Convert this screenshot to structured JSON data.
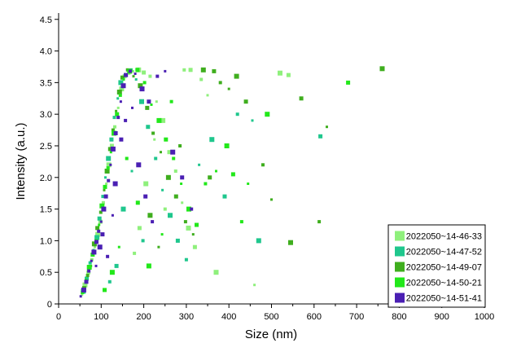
{
  "chart_data": {
    "type": "scatter",
    "title": "",
    "xlabel": "Size (nm)",
    "ylabel": "Intensity (a.u.)",
    "xlim": [
      0,
      1000
    ],
    "ylim": [
      0,
      4.6
    ],
    "x_ticks": [
      0,
      100,
      200,
      300,
      400,
      500,
      600,
      700,
      800,
      900,
      1000
    ],
    "x_tick_labels": [
      "0",
      "100",
      "200",
      "300",
      "400",
      "500",
      "600",
      "700",
      "800",
      "900",
      "1000"
    ],
    "y_ticks": [
      0,
      0.5,
      1.0,
      1.5,
      2.0,
      2.5,
      3.0,
      3.5,
      4.0,
      4.5
    ],
    "y_tick_labels": [
      "0",
      "0.5",
      "1.0",
      "1.5",
      "2.0",
      "2.5",
      "3.0",
      "3.5",
      "4.0",
      "4.5"
    ],
    "grid": false,
    "legend_position": "bottom-right",
    "series": [
      {
        "name": "2022050~14-46-33",
        "color": "#8ff07c",
        "points": [
          [
            55,
            0.15
          ],
          [
            62,
            0.3
          ],
          [
            70,
            0.5
          ],
          [
            78,
            0.7
          ],
          [
            85,
            0.9
          ],
          [
            92,
            1.1
          ],
          [
            98,
            1.3
          ],
          [
            105,
            1.6
          ],
          [
            112,
            1.9
          ],
          [
            118,
            2.2
          ],
          [
            125,
            2.5
          ],
          [
            132,
            2.8
          ],
          [
            140,
            3.1
          ],
          [
            148,
            3.4
          ],
          [
            155,
            3.6
          ],
          [
            165,
            3.65
          ],
          [
            175,
            3.68
          ],
          [
            188,
            3.7
          ],
          [
            200,
            3.66
          ],
          [
            215,
            3.6
          ],
          [
            230,
            3.2
          ],
          [
            245,
            2.9
          ],
          [
            260,
            2.4
          ],
          [
            275,
            2.1
          ],
          [
            290,
            1.6
          ],
          [
            305,
            1.2
          ],
          [
            320,
            0.9
          ],
          [
            335,
            3.55
          ],
          [
            350,
            3.3
          ],
          [
            370,
            0.5
          ],
          [
            310,
            3.7
          ],
          [
            295,
            3.7
          ],
          [
            460,
            0.3
          ],
          [
            520,
            3.65
          ],
          [
            540,
            3.62
          ],
          [
            250,
            1.5
          ],
          [
            225,
            2.6
          ],
          [
            205,
            1.9
          ],
          [
            190,
            1.2
          ],
          [
            178,
            0.8
          ]
        ]
      },
      {
        "name": "2022050~14-47-52",
        "color": "#1fc78d",
        "points": [
          [
            58,
            0.2
          ],
          [
            66,
            0.4
          ],
          [
            74,
            0.65
          ],
          [
            82,
            0.85
          ],
          [
            90,
            1.05
          ],
          [
            96,
            1.35
          ],
          [
            104,
            1.7
          ],
          [
            110,
            2.0
          ],
          [
            117,
            2.3
          ],
          [
            124,
            2.6
          ],
          [
            131,
            2.95
          ],
          [
            139,
            3.25
          ],
          [
            146,
            3.5
          ],
          [
            158,
            3.62
          ],
          [
            170,
            3.7
          ],
          [
            182,
            3.55
          ],
          [
            195,
            3.2
          ],
          [
            210,
            2.8
          ],
          [
            228,
            2.3
          ],
          [
            244,
            1.8
          ],
          [
            262,
            1.4
          ],
          [
            280,
            1.0
          ],
          [
            300,
            0.7
          ],
          [
            330,
            2.2
          ],
          [
            360,
            2.6
          ],
          [
            390,
            1.7
          ],
          [
            420,
            3.0
          ],
          [
            455,
            2.9
          ],
          [
            470,
            1.0
          ],
          [
            615,
            2.65
          ],
          [
            198,
            1.0
          ],
          [
            172,
            2.1
          ],
          [
            152,
            1.5
          ],
          [
            136,
            0.6
          ],
          [
            120,
            0.35
          ]
        ]
      },
      {
        "name": "2022050~14-49-07",
        "color": "#3fae1e",
        "points": [
          [
            60,
            0.25
          ],
          [
            68,
            0.45
          ],
          [
            76,
            0.6
          ],
          [
            84,
            0.95
          ],
          [
            91,
            1.2
          ],
          [
            99,
            1.45
          ],
          [
            107,
            1.8
          ],
          [
            114,
            2.1
          ],
          [
            121,
            2.45
          ],
          [
            128,
            2.75
          ],
          [
            135,
            3.05
          ],
          [
            143,
            3.35
          ],
          [
            150,
            3.58
          ],
          [
            162,
            3.7
          ],
          [
            176,
            3.6
          ],
          [
            192,
            3.45
          ],
          [
            208,
            3.1
          ],
          [
            222,
            2.7
          ],
          [
            240,
            2.4
          ],
          [
            258,
            2.0
          ],
          [
            276,
            1.7
          ],
          [
            298,
            1.3
          ],
          [
            316,
            1.1
          ],
          [
            340,
            3.7
          ],
          [
            365,
            3.68
          ],
          [
            380,
            3.5
          ],
          [
            400,
            3.4
          ],
          [
            418,
            3.6
          ],
          [
            440,
            3.2
          ],
          [
            480,
            2.2
          ],
          [
            500,
            1.65
          ],
          [
            545,
            0.97
          ],
          [
            570,
            3.25
          ],
          [
            612,
            1.3
          ],
          [
            630,
            2.8
          ],
          [
            760,
            3.72
          ],
          [
            355,
            2.0
          ],
          [
            285,
            2.5
          ],
          [
            235,
            0.9
          ],
          [
            215,
            1.4
          ]
        ]
      },
      {
        "name": "2022050~14-50-21",
        "color": "#22e81a",
        "points": [
          [
            56,
            0.18
          ],
          [
            64,
            0.38
          ],
          [
            72,
            0.58
          ],
          [
            80,
            0.78
          ],
          [
            88,
            1.0
          ],
          [
            95,
            1.25
          ],
          [
            102,
            1.55
          ],
          [
            109,
            1.85
          ],
          [
            116,
            2.15
          ],
          [
            123,
            2.4
          ],
          [
            130,
            2.7
          ],
          [
            137,
            3.0
          ],
          [
            145,
            3.3
          ],
          [
            153,
            3.55
          ],
          [
            167,
            3.68
          ],
          [
            185,
            3.7
          ],
          [
            202,
            3.5
          ],
          [
            218,
            3.15
          ],
          [
            236,
            2.9
          ],
          [
            252,
            2.6
          ],
          [
            270,
            2.3
          ],
          [
            288,
            1.9
          ],
          [
            306,
            1.5
          ],
          [
            324,
            1.25
          ],
          [
            345,
            1.9
          ],
          [
            370,
            2.1
          ],
          [
            395,
            2.5
          ],
          [
            410,
            2.05
          ],
          [
            430,
            1.3
          ],
          [
            445,
            1.9
          ],
          [
            490,
            3.0
          ],
          [
            680,
            3.5
          ],
          [
            265,
            3.2
          ],
          [
            243,
            1.1
          ],
          [
            212,
            0.6
          ],
          [
            186,
            1.6
          ],
          [
            160,
            2.3
          ],
          [
            142,
            0.9
          ],
          [
            126,
            0.5
          ],
          [
            108,
            0.22
          ]
        ]
      },
      {
        "name": "2022050~14-51-41",
        "color": "#4a1fb3",
        "points": [
          [
            52,
            0.12
          ],
          [
            59,
            0.22
          ],
          [
            65,
            0.35
          ],
          [
            71,
            0.52
          ],
          [
            77,
            0.68
          ],
          [
            83,
            0.82
          ],
          [
            89,
            0.98
          ],
          [
            94,
            1.15
          ],
          [
            100,
            1.3
          ],
          [
            106,
            1.5
          ],
          [
            111,
            1.7
          ],
          [
            117,
            1.95
          ],
          [
            122,
            2.2
          ],
          [
            128,
            2.45
          ],
          [
            134,
            2.7
          ],
          [
            140,
            2.95
          ],
          [
            146,
            3.2
          ],
          [
            152,
            3.45
          ],
          [
            158,
            3.62
          ],
          [
            168,
            3.68
          ],
          [
            180,
            3.64
          ],
          [
            196,
            3.4
          ],
          [
            212,
            3.2
          ],
          [
            232,
            3.6
          ],
          [
            250,
            3.68
          ],
          [
            268,
            2.4
          ],
          [
            290,
            2.0
          ],
          [
            312,
            1.5
          ],
          [
            88,
            0.6
          ],
          [
            97,
            0.9
          ],
          [
            103,
            1.1
          ],
          [
            115,
            0.75
          ],
          [
            127,
            1.4
          ],
          [
            133,
            1.9
          ],
          [
            147,
            2.6
          ],
          [
            157,
            2.9
          ],
          [
            173,
            3.1
          ],
          [
            188,
            2.2
          ],
          [
            204,
            1.7
          ],
          [
            220,
            1.3
          ]
        ]
      }
    ]
  }
}
